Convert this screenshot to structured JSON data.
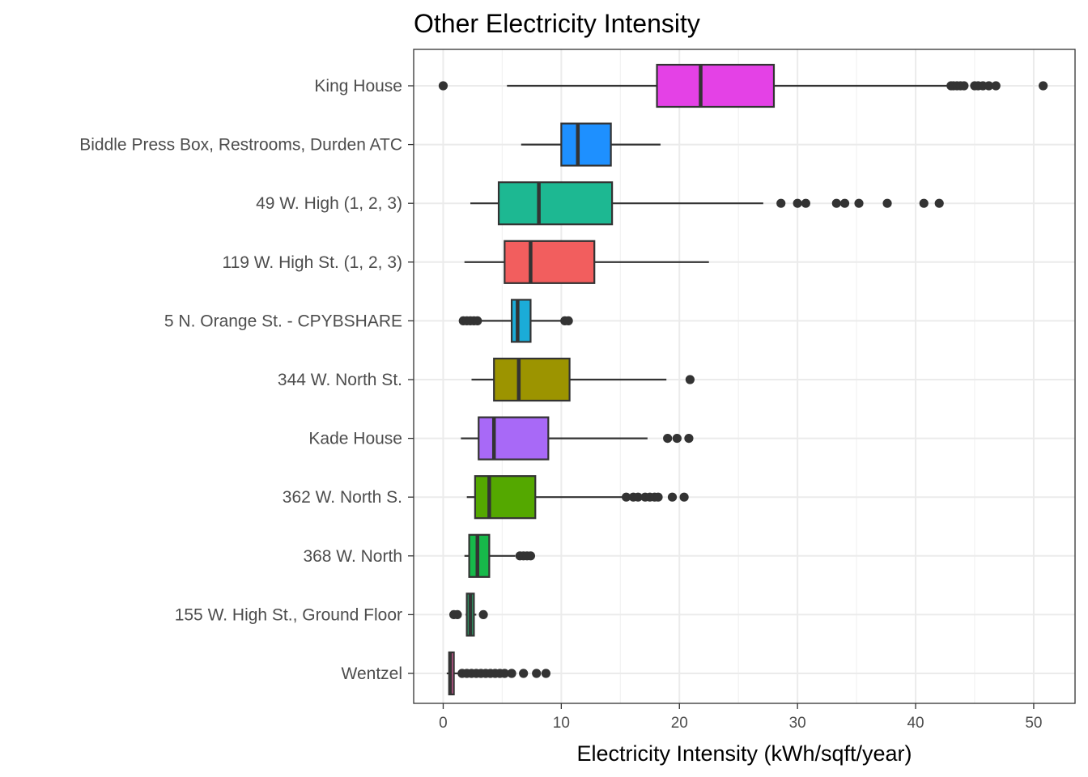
{
  "chart_data": {
    "type": "boxplot",
    "orientation": "horizontal",
    "title": "Other Electricity Intensity",
    "xlabel": "Electricity Intensity (kWh/sqft/year)",
    "ylabel": "",
    "xlim": [
      -2.5,
      53.5
    ],
    "x_ticks": [
      0,
      10,
      20,
      30,
      40,
      50
    ],
    "x_tick_labels": [
      "0",
      "10",
      "20",
      "30",
      "40",
      "50"
    ],
    "grid": true,
    "legend": "none",
    "series": [
      {
        "name": "King House",
        "color": "#E441E6",
        "whisker_low": 5.4,
        "q1": 18.1,
        "median": 21.8,
        "q3": 28.0,
        "whisker_high": 42.8,
        "outliers": [
          0.0,
          43.0,
          43.2,
          43.5,
          43.8,
          44.1,
          45.0,
          45.3,
          45.7,
          46.2,
          46.8,
          50.8
        ]
      },
      {
        "name": "Biddle Press Box, Restrooms, Durden ATC",
        "color": "#1E90FF",
        "whisker_low": 6.6,
        "q1": 10.0,
        "median": 11.4,
        "q3": 14.2,
        "whisker_high": 18.4,
        "outliers": []
      },
      {
        "name": "49 W. High (1, 2, 3)",
        "color": "#1DB892",
        "whisker_low": 2.3,
        "q1": 4.7,
        "median": 8.1,
        "q3": 14.3,
        "whisker_high": 27.1,
        "outliers": [
          28.6,
          30.0,
          30.7,
          33.3,
          34.0,
          35.2,
          37.6,
          40.7,
          42.0
        ]
      },
      {
        "name": "119 W. High St. (1, 2, 3)",
        "color": "#F25E5E",
        "whisker_low": 1.8,
        "q1": 5.2,
        "median": 7.4,
        "q3": 12.8,
        "whisker_high": 22.5,
        "outliers": []
      },
      {
        "name": "5 N. Orange St. - CPYBSHARE",
        "color": "#1BACD8",
        "whisker_low": 3.2,
        "q1": 5.8,
        "median": 6.3,
        "q3": 7.4,
        "whisker_high": 10.1,
        "outliers": [
          1.7,
          2.0,
          2.3,
          2.6,
          2.9,
          10.3,
          10.6
        ]
      },
      {
        "name": "344 W. North St.",
        "color": "#9C9400",
        "whisker_low": 2.4,
        "q1": 4.3,
        "median": 6.4,
        "q3": 10.7,
        "whisker_high": 18.9,
        "outliers": [
          20.9
        ]
      },
      {
        "name": "Kade House",
        "color": "#A869F7",
        "whisker_low": 1.5,
        "q1": 3.0,
        "median": 4.3,
        "q3": 8.9,
        "whisker_high": 17.3,
        "outliers": [
          19.0,
          19.8,
          20.8
        ]
      },
      {
        "name": "362 W. North S.",
        "color": "#54A800",
        "whisker_low": 2.0,
        "q1": 2.7,
        "median": 3.9,
        "q3": 7.8,
        "whisker_high": 15.3,
        "outliers": [
          15.5,
          16.1,
          16.5,
          17.1,
          17.5,
          17.9,
          18.2,
          19.4,
          20.4
        ]
      },
      {
        "name": "368 W. North",
        "color": "#17B94A",
        "whisker_low": 1.8,
        "q1": 2.2,
        "median": 2.9,
        "q3": 3.9,
        "whisker_high": 6.1,
        "outliers": [
          6.5,
          6.8,
          7.1,
          7.4
        ]
      },
      {
        "name": "155 W. High St., Ground Floor",
        "color": "#2FA66E",
        "whisker_low": 1.9,
        "q1": 2.0,
        "median": 2.3,
        "q3": 2.6,
        "whisker_high": 2.8,
        "outliers": [
          0.9,
          1.2,
          3.4
        ]
      },
      {
        "name": "Wentzel",
        "color": "#FF69B4",
        "whisker_low": 0.3,
        "q1": 0.5,
        "median": 0.6,
        "q3": 0.9,
        "whisker_high": 1.3,
        "outliers": [
          1.6,
          2.0,
          2.4,
          2.8,
          3.2,
          3.6,
          4.0,
          4.4,
          4.8,
          5.2,
          5.8,
          6.8,
          7.9,
          8.7
        ]
      }
    ]
  }
}
